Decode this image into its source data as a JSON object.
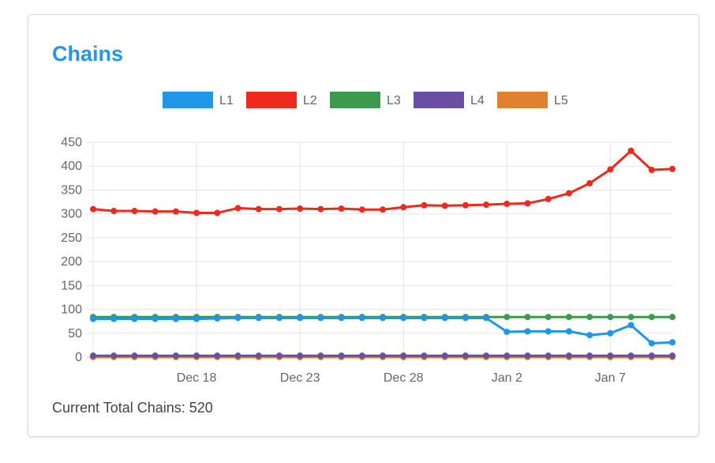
{
  "card": {
    "title": "Chains",
    "footer_label": "Current Total Chains: 520"
  },
  "chart_data": {
    "type": "line",
    "title": "",
    "xlabel": "",
    "ylabel": "",
    "ylim": [
      0,
      450
    ],
    "yticks": [
      0,
      50,
      100,
      150,
      200,
      250,
      300,
      350,
      400,
      450
    ],
    "grid": true,
    "legend_position": "top",
    "x": [
      "Dec 13",
      "Dec 14",
      "Dec 15",
      "Dec 16",
      "Dec 17",
      "Dec 18",
      "Dec 19",
      "Dec 20",
      "Dec 21",
      "Dec 22",
      "Dec 23",
      "Dec 24",
      "Dec 25",
      "Dec 26",
      "Dec 27",
      "Dec 28",
      "Dec 29",
      "Dec 30",
      "Dec 31",
      "Jan 1",
      "Jan 2",
      "Jan 3",
      "Jan 4",
      "Jan 5",
      "Jan 6",
      "Jan 7",
      "Jan 8",
      "Jan 9",
      "Jan 10"
    ],
    "xtick_labels": [
      "Dec 18",
      "Dec 23",
      "Dec 28",
      "Jan 2",
      "Jan 7"
    ],
    "series": [
      {
        "name": "L1",
        "color": "#1f96e8",
        "values": [
          80,
          80,
          80,
          80,
          80,
          80,
          81,
          82,
          82,
          82,
          82,
          82,
          82,
          82,
          82,
          82,
          82,
          82,
          82,
          82,
          53,
          54,
          54,
          54,
          46,
          50,
          67,
          29,
          31
        ]
      },
      {
        "name": "L2",
        "color": "#f0291f",
        "values": [
          310,
          306,
          306,
          305,
          305,
          302,
          302,
          312,
          310,
          310,
          311,
          310,
          311,
          309,
          309,
          314,
          318,
          317,
          318,
          319,
          321,
          322,
          331,
          343,
          364,
          393,
          432,
          392,
          394
        ]
      },
      {
        "name": "L3",
        "color": "#3d9a4c",
        "values": [
          84,
          84,
          84,
          84,
          84,
          84,
          84,
          84,
          84,
          84,
          84,
          84,
          84,
          84,
          84,
          84,
          84,
          84,
          84,
          84,
          84,
          84,
          84,
          84,
          84,
          84,
          84,
          84,
          84
        ]
      },
      {
        "name": "L4",
        "color": "#6a4ea1",
        "values": [
          3,
          3,
          3,
          3,
          3,
          3,
          3,
          3,
          3,
          3,
          3,
          3,
          3,
          3,
          3,
          3,
          3,
          3,
          3,
          3,
          3,
          3,
          3,
          3,
          3,
          3,
          3,
          3,
          3
        ]
      },
      {
        "name": "L5",
        "color": "#e0812f",
        "values": [
          0,
          0,
          0,
          0,
          0,
          0,
          0,
          0,
          0,
          0,
          0,
          0,
          0,
          0,
          0,
          0,
          0,
          0,
          0,
          0,
          0,
          0,
          0,
          0,
          0,
          0,
          0,
          0,
          0
        ]
      }
    ]
  }
}
